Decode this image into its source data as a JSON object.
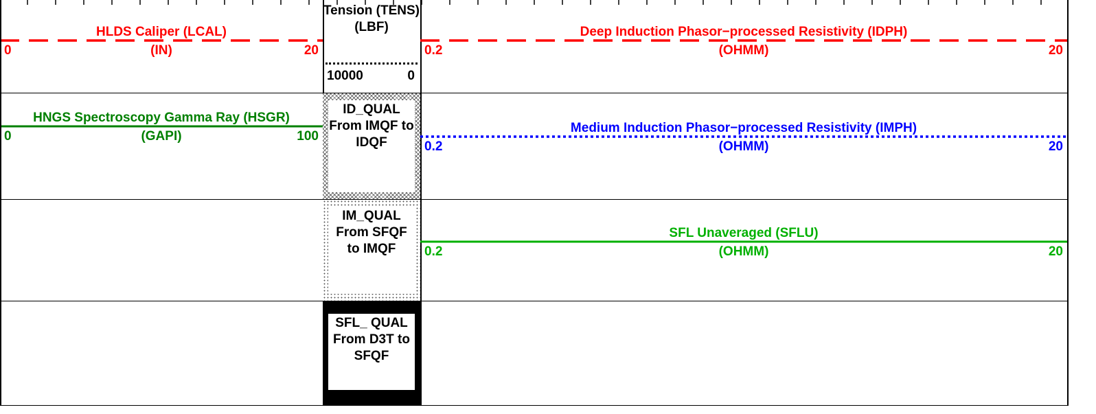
{
  "left_track": {
    "curves": [
      {
        "name": "HLDS Caliper (LCAL)",
        "unit": "(IN)",
        "left": 0,
        "right": 20,
        "color": "#ff0000",
        "style": "dashed"
      },
      {
        "name": "HNGS Spectroscopy Gamma Ray (HSGR)",
        "unit": "(GAPI)",
        "left": 0,
        "right": 100,
        "color": "#008000",
        "style": "solid"
      }
    ]
  },
  "middle_track": {
    "tension": {
      "name": "Tension (TENS) (LBF)",
      "left": 10000,
      "right": 0
    },
    "flags": [
      {
        "label": "ID_QUAL From IMQF to IDQF",
        "fill": "crosshatch"
      },
      {
        "label": "IM_QUAL From SFQF to IMQF",
        "fill": "dots"
      },
      {
        "label": "SFL_ QUAL From D3T to SFQF",
        "fill": "solid"
      }
    ]
  },
  "right_track": {
    "curves": [
      {
        "name": "Deep Induction Phasor−processed Resistivity (IDPH)",
        "unit": "(OHMM)",
        "left": 0.2,
        "right": 20,
        "color": "#ff0000",
        "style": "dashed"
      },
      {
        "name": "Medium Induction Phasor−processed Resistivity (IMPH)",
        "unit": "(OHMM)",
        "left": 0.2,
        "right": 20,
        "color": "#0000ff",
        "style": "dotted"
      },
      {
        "name": "SFL Unaveraged (SFLU)",
        "unit": "(OHMM)",
        "left": 0.2,
        "right": 20,
        "color": "#00b000",
        "style": "solid"
      }
    ]
  }
}
